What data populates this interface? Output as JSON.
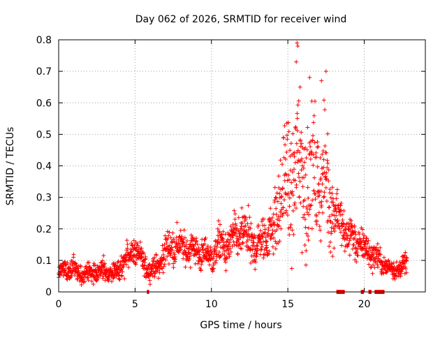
{
  "chart_data": {
    "type": "scatter",
    "title": "Day 062 of 2026, SRMTID for receiver wind",
    "xlabel": "GPS time / hours",
    "ylabel": "SRMTID / TECUs",
    "xlim": [
      0,
      24
    ],
    "ylim": [
      0,
      0.8
    ],
    "x_ticks": [
      0,
      5,
      10,
      15,
      20
    ],
    "x_tick_labels": [
      "0",
      "5",
      "10",
      "15",
      "20"
    ],
    "y_ticks": [
      0,
      0.1,
      0.2,
      0.3,
      0.4,
      0.5,
      0.6,
      0.7,
      0.8
    ],
    "y_tick_labels": [
      "0",
      "0.1",
      "0.2",
      "0.3",
      "0.4",
      "0.5",
      "0.6",
      "0.7",
      "0.8"
    ],
    "grid": true,
    "marker": "+",
    "series_color": "#ff0000",
    "envelope": {
      "x": [
        0,
        0.5,
        1,
        1.5,
        2,
        2.5,
        3,
        3.5,
        4,
        4.5,
        5,
        5.5,
        6,
        6.5,
        7,
        7.5,
        8,
        8.5,
        9,
        9.5,
        10,
        10.5,
        11,
        11.5,
        12,
        12.5,
        13,
        13.5,
        14,
        14.25,
        14.5,
        14.75,
        15,
        15.25,
        15.5,
        15.75,
        16,
        16.25,
        16.5,
        16.75,
        17,
        17.25,
        17.5,
        17.75,
        18,
        18.25,
        18.5,
        18.75,
        19,
        19.5,
        20,
        20.5,
        21,
        21.5,
        22,
        22.5,
        22.8
      ],
      "center": [
        0.07,
        0.06,
        0.08,
        0.05,
        0.06,
        0.06,
        0.07,
        0.06,
        0.07,
        0.11,
        0.14,
        0.09,
        0.07,
        0.08,
        0.13,
        0.15,
        0.14,
        0.14,
        0.13,
        0.12,
        0.11,
        0.15,
        0.14,
        0.17,
        0.19,
        0.16,
        0.14,
        0.18,
        0.19,
        0.24,
        0.3,
        0.33,
        0.34,
        0.36,
        0.38,
        0.4,
        0.38,
        0.37,
        0.36,
        0.38,
        0.37,
        0.34,
        0.36,
        0.3,
        0.26,
        0.24,
        0.22,
        0.19,
        0.18,
        0.16,
        0.14,
        0.12,
        0.1,
        0.08,
        0.07,
        0.08,
        0.09
      ],
      "spread": [
        0.02,
        0.02,
        0.025,
        0.02,
        0.02,
        0.02,
        0.025,
        0.02,
        0.025,
        0.03,
        0.03,
        0.025,
        0.02,
        0.025,
        0.035,
        0.04,
        0.035,
        0.035,
        0.035,
        0.035,
        0.035,
        0.04,
        0.04,
        0.045,
        0.05,
        0.05,
        0.045,
        0.05,
        0.06,
        0.08,
        0.1,
        0.11,
        0.13,
        0.15,
        0.16,
        0.17,
        0.16,
        0.15,
        0.14,
        0.13,
        0.13,
        0.11,
        0.12,
        0.1,
        0.08,
        0.06,
        0.05,
        0.05,
        0.05,
        0.04,
        0.035,
        0.03,
        0.025,
        0.02,
        0.02,
        0.02,
        0.02
      ],
      "point_count": 1700
    },
    "peak_points": [
      {
        "x": 15.6,
        "y": 0.79
      },
      {
        "x": 15.65,
        "y": 0.78
      },
      {
        "x": 15.55,
        "y": 0.73
      },
      {
        "x": 17.5,
        "y": 0.7
      },
      {
        "x": 17.2,
        "y": 0.67
      },
      {
        "x": 15.8,
        "y": 0.65
      }
    ],
    "zero_runs": [
      {
        "x_start": 5.8,
        "x_end": 5.9
      },
      {
        "x_start": 18.2,
        "x_end": 18.7
      },
      {
        "x_start": 19.8,
        "x_end": 19.95
      },
      {
        "x_start": 20.3,
        "x_end": 20.45
      },
      {
        "x_start": 20.7,
        "x_end": 21.3
      }
    ]
  }
}
